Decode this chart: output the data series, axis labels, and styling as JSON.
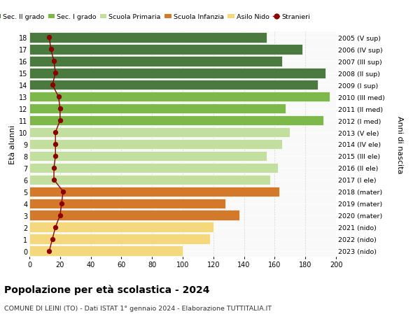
{
  "ages": [
    18,
    17,
    16,
    15,
    14,
    13,
    12,
    11,
    10,
    9,
    8,
    7,
    6,
    5,
    4,
    3,
    2,
    1,
    0
  ],
  "years": [
    "2005 (V sup)",
    "2006 (IV sup)",
    "2007 (III sup)",
    "2008 (II sup)",
    "2009 (I sup)",
    "2010 (III med)",
    "2011 (II med)",
    "2012 (I med)",
    "2013 (V ele)",
    "2014 (IV ele)",
    "2015 (III ele)",
    "2016 (II ele)",
    "2017 (I ele)",
    "2018 (mater)",
    "2019 (mater)",
    "2020 (mater)",
    "2021 (nido)",
    "2022 (nido)",
    "2023 (nido)"
  ],
  "bar_values": [
    155,
    178,
    165,
    193,
    188,
    196,
    167,
    192,
    170,
    165,
    155,
    162,
    157,
    163,
    128,
    137,
    120,
    118,
    100
  ],
  "stranieri": [
    13,
    14,
    16,
    17,
    15,
    19,
    20,
    20,
    17,
    17,
    17,
    16,
    16,
    22,
    21,
    20,
    17,
    15,
    13
  ],
  "bar_colors": [
    "#4a7a3d",
    "#4a7a3d",
    "#4a7a3d",
    "#4a7a3d",
    "#4a7a3d",
    "#7cb94a",
    "#7cb94a",
    "#7cb94a",
    "#c2dfa0",
    "#c2dfa0",
    "#c2dfa0",
    "#c2dfa0",
    "#c2dfa0",
    "#d4782a",
    "#d4782a",
    "#d4782a",
    "#f5d87c",
    "#f5d87c",
    "#f5d87c"
  ],
  "legend_labels": [
    "Sec. II grado",
    "Sec. I grado",
    "Scuola Primaria",
    "Scuola Infanzia",
    "Asilo Nido",
    "Stranieri"
  ],
  "legend_colors": [
    "#4a7a3d",
    "#7cb94a",
    "#c2dfa0",
    "#d4782a",
    "#f5d87c",
    "#8b0000"
  ],
  "stranieri_color": "#8b0000",
  "title": "Popolazione per età scolastica - 2024",
  "subtitle": "COMUNE DI LEINI (TO) - Dati ISTAT 1° gennaio 2024 - Elaborazione TUTTITALIA.IT",
  "ylabel": "Età alunni",
  "y2label": "Anni di nascita",
  "xlim": [
    0,
    200
  ],
  "background_color": "#f9f9f9",
  "grid_color": "#cccccc"
}
